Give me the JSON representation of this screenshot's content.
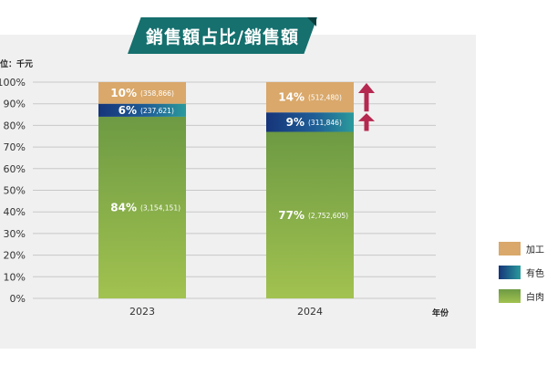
{
  "header": {
    "title": "銷售額占比/銷售額"
  },
  "chart_data": {
    "type": "bar",
    "stacked": true,
    "unit_label": "位：千元",
    "xlabel": "年份",
    "categories": [
      "2023",
      "2024"
    ],
    "ylim": [
      0,
      100
    ],
    "yticks": [
      "0%",
      "10%",
      "20%",
      "30%",
      "40%",
      "50%",
      "60%",
      "70%",
      "80%",
      "90%",
      "100%"
    ],
    "grid": true,
    "series": [
      {
        "name": "白肉",
        "color": "#8db34a",
        "percents": [
          84,
          77
        ],
        "pct_labels": [
          "84%",
          "77%"
        ],
        "amount_labels": [
          "(3,154,151)",
          "(2,752,605)"
        ]
      },
      {
        "name": "有色",
        "color": "#1f4e8c",
        "percents": [
          6,
          9
        ],
        "pct_labels": [
          "6%",
          "9%"
        ],
        "amount_labels": [
          "(237,621)",
          "(311,846)"
        ]
      },
      {
        "name": "加工",
        "color": "#d9a86a",
        "percents": [
          10,
          14
        ],
        "pct_labels": [
          "10%",
          "14%"
        ],
        "amount_labels": [
          "(358,866)",
          "(512,480)"
        ]
      }
    ],
    "increase_arrows": {
      "category": "2024",
      "series": [
        "有色",
        "加工"
      ],
      "color": "#b5284f"
    }
  }
}
